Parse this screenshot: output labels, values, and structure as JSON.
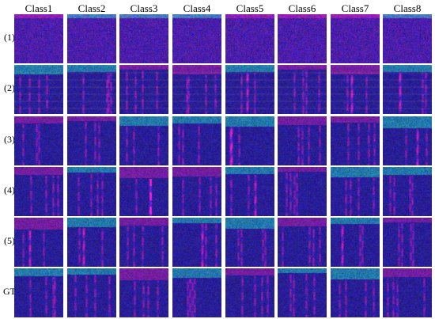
{
  "columns": [
    "Class1",
    "Class2",
    "Class3",
    "Class4",
    "Class5",
    "Class6",
    "Class7",
    "Class8"
  ],
  "rows": [
    {
      "label": "(1)",
      "style": "noise"
    },
    {
      "label": "(2)",
      "style": "banded"
    },
    {
      "label": "(3)",
      "style": "vertical"
    },
    {
      "label": "(4)",
      "style": "vertical"
    },
    {
      "label": "(5)",
      "style": "vertical"
    },
    {
      "label": "GT",
      "style": "vertical"
    }
  ],
  "colors": {
    "background": "#ffffff",
    "base_blue": "#1a1fa0",
    "accent_magenta": "#c0207f",
    "accent_green": "#2f9c8f"
  }
}
